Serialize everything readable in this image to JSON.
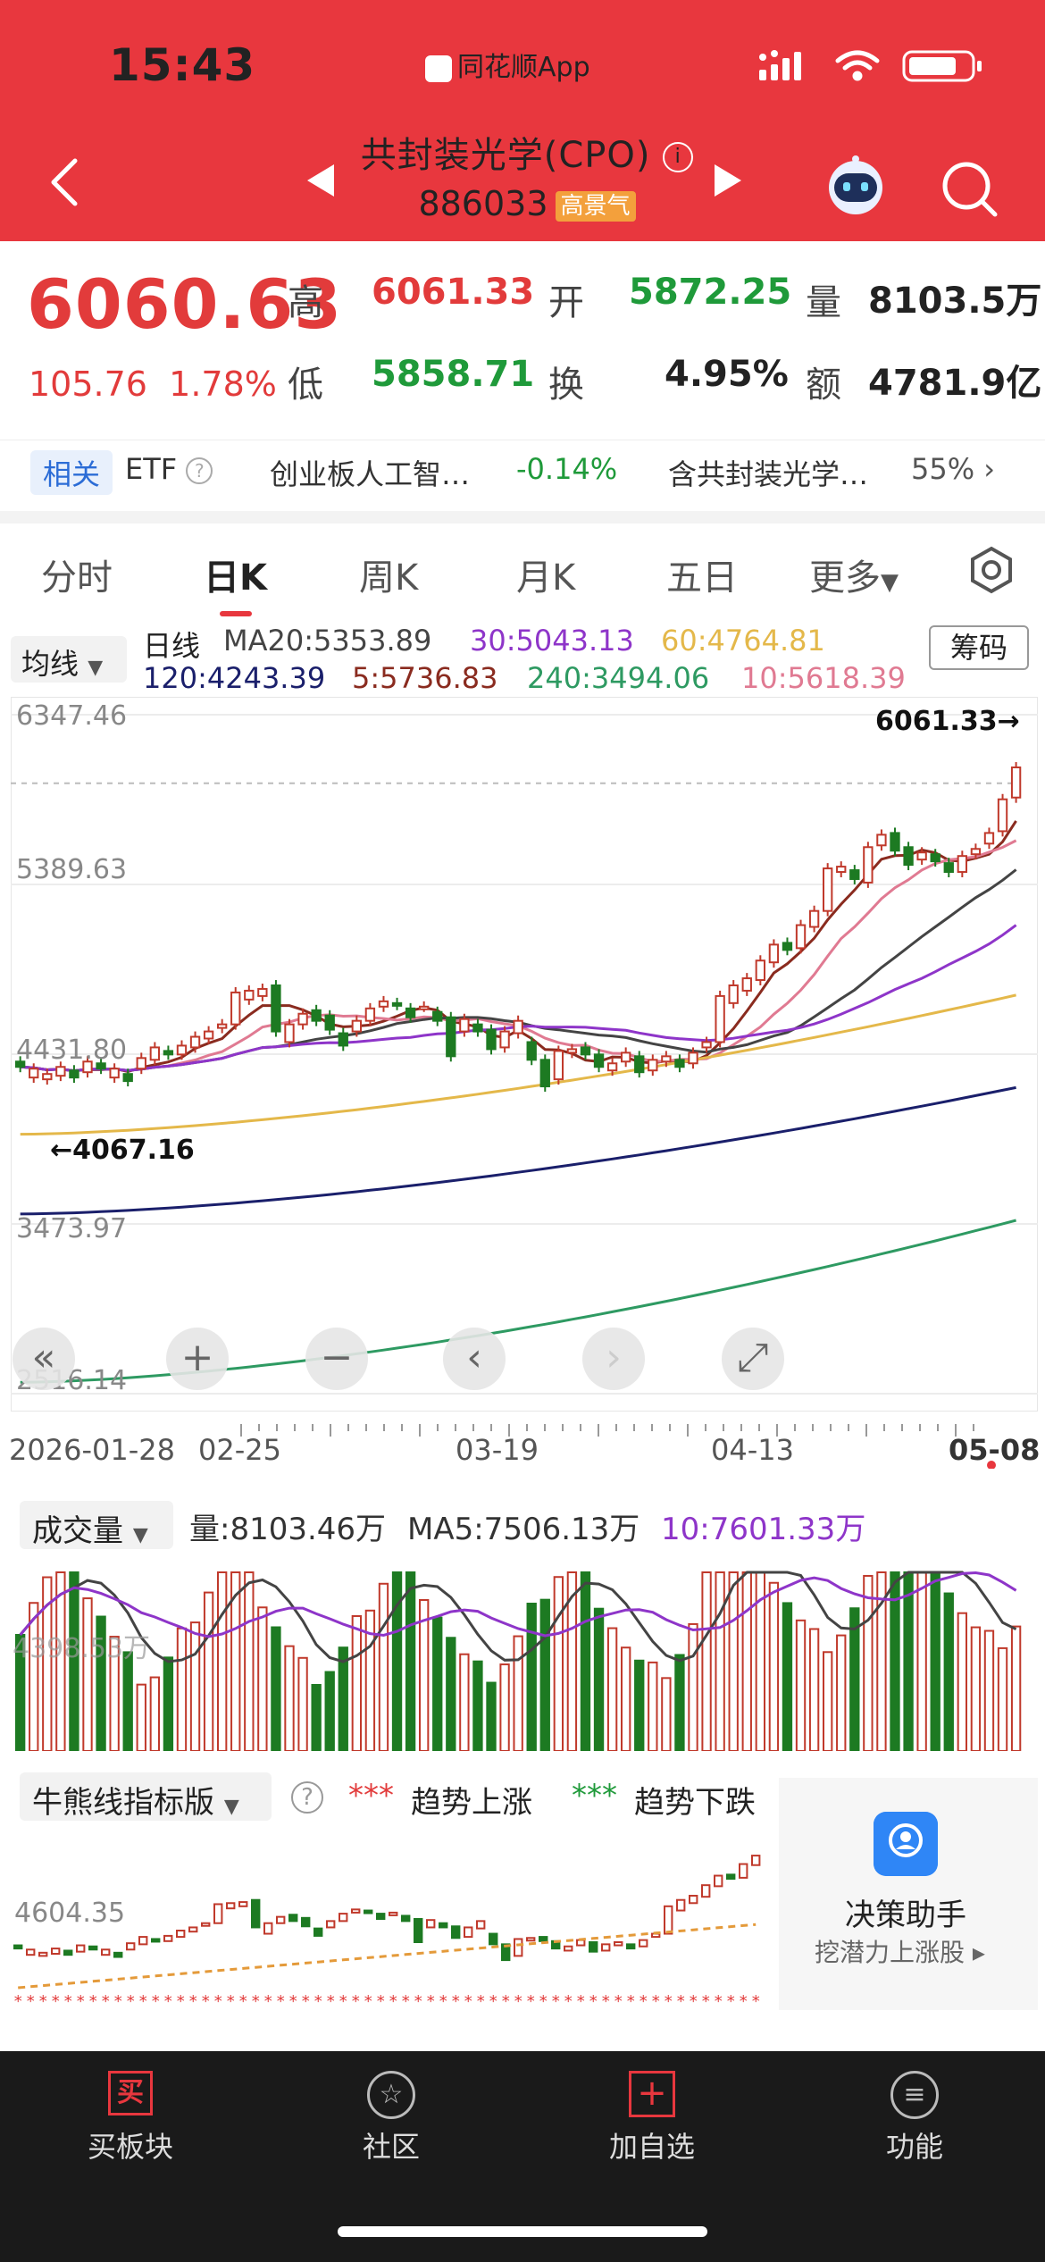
{
  "status": {
    "time": "15:43",
    "app": "同花顺App"
  },
  "header": {
    "title": "共封装光学(CPO)",
    "code": "886033",
    "badge": "高景气"
  },
  "quote": {
    "price": "6060.63",
    "change": "105.76",
    "change_pct": "1.78%",
    "labels": {
      "high": "高",
      "open": "开",
      "vol": "量",
      "low": "低",
      "turnover": "换",
      "amount": "额"
    },
    "high": "6061.33",
    "open": "5872.25",
    "vol": "8103.5万",
    "low": "5858.71",
    "turnover": "4.95%",
    "amount": "4781.9亿"
  },
  "related": {
    "tag": "相关",
    "etf": "ETF",
    "item1_name": "创业板人工智…",
    "item1_value": "-0.14%",
    "item2_name": "含共封装光学…",
    "item2_value": "55%"
  },
  "tabs": [
    "分时",
    "日K",
    "周K",
    "月K",
    "五日",
    "更多"
  ],
  "ma": {
    "select": "均线",
    "type": "日线",
    "ma20": "MA20:5353.89",
    "ma30": "30:5043.13",
    "ma60": "60:4764.81",
    "ma120": "120:4243.39",
    "ma5": "5:5736.83",
    "ma240": "240:3494.06",
    "ma10": "10:5618.39",
    "chip": "筹码"
  },
  "colors": {
    "up": "#c0392b",
    "down": "#1d7a22",
    "ma5": "#8a2b1f",
    "ma10": "#e07a92",
    "ma20": "#444444",
    "ma30": "#8e35c9",
    "ma60": "#e4b84a",
    "ma120": "#1a1f6b",
    "ma240": "#2e9a62"
  },
  "chart_data": {
    "type": "candlestick",
    "y_ticks": [
      "6347.46",
      "5389.63",
      "4431.80",
      "3473.97",
      "2516.14"
    ],
    "ylim": [
      2516.14,
      6347.46
    ],
    "high_label": "6061.33→",
    "low_label": "←4067.16",
    "dates": [
      "2026-01-28",
      "02-25",
      "03-19",
      "04-13",
      "05-08"
    ],
    "candles": [
      {
        "o": 4390,
        "c": 4360
      },
      {
        "o": 4300,
        "c": 4350
      },
      {
        "o": 4290,
        "c": 4320
      },
      {
        "o": 4310,
        "c": 4360
      },
      {
        "o": 4340,
        "c": 4300
      },
      {
        "o": 4330,
        "c": 4390
      },
      {
        "o": 4380,
        "c": 4350
      },
      {
        "o": 4300,
        "c": 4350
      },
      {
        "o": 4320,
        "c": 4280
      },
      {
        "o": 4350,
        "c": 4410
      },
      {
        "o": 4400,
        "c": 4470
      },
      {
        "o": 4450,
        "c": 4430
      },
      {
        "o": 4430,
        "c": 4480
      },
      {
        "o": 4470,
        "c": 4530
      },
      {
        "o": 4520,
        "c": 4560
      },
      {
        "o": 4580,
        "c": 4600
      },
      {
        "o": 4600,
        "c": 4780
      },
      {
        "o": 4740,
        "c": 4790
      },
      {
        "o": 4760,
        "c": 4800
      },
      {
        "o": 4820,
        "c": 4560
      },
      {
        "o": 4500,
        "c": 4600
      },
      {
        "o": 4600,
        "c": 4660
      },
      {
        "o": 4680,
        "c": 4620
      },
      {
        "o": 4650,
        "c": 4570
      },
      {
        "o": 4550,
        "c": 4480
      },
      {
        "o": 4560,
        "c": 4620
      },
      {
        "o": 4620,
        "c": 4690
      },
      {
        "o": 4700,
        "c": 4730
      },
      {
        "o": 4720,
        "c": 4710
      },
      {
        "o": 4690,
        "c": 4640
      },
      {
        "o": 4700,
        "c": 4700
      },
      {
        "o": 4670,
        "c": 4620
      },
      {
        "o": 4640,
        "c": 4420
      },
      {
        "o": 4560,
        "c": 4630
      },
      {
        "o": 4600,
        "c": 4560
      },
      {
        "o": 4570,
        "c": 4460
      },
      {
        "o": 4470,
        "c": 4560
      },
      {
        "o": 4550,
        "c": 4620
      },
      {
        "o": 4500,
        "c": 4400
      },
      {
        "o": 4400,
        "c": 4250
      },
      {
        "o": 4290,
        "c": 4450
      },
      {
        "o": 4440,
        "c": 4460
      },
      {
        "o": 4470,
        "c": 4430
      },
      {
        "o": 4430,
        "c": 4360
      },
      {
        "o": 4340,
        "c": 4380
      },
      {
        "o": 4390,
        "c": 4440
      },
      {
        "o": 4420,
        "c": 4330
      },
      {
        "o": 4340,
        "c": 4400
      },
      {
        "o": 4390,
        "c": 4420
      },
      {
        "o": 4400,
        "c": 4360
      },
      {
        "o": 4380,
        "c": 4440
      },
      {
        "o": 4470,
        "c": 4500
      },
      {
        "o": 4500,
        "c": 4760
      },
      {
        "o": 4720,
        "c": 4820
      },
      {
        "o": 4790,
        "c": 4860
      },
      {
        "o": 4850,
        "c": 4960
      },
      {
        "o": 4950,
        "c": 5050
      },
      {
        "o": 5060,
        "c": 5020
      },
      {
        "o": 5030,
        "c": 5160
      },
      {
        "o": 5150,
        "c": 5240
      },
      {
        "o": 5240,
        "c": 5480
      },
      {
        "o": 5460,
        "c": 5490
      },
      {
        "o": 5470,
        "c": 5420
      },
      {
        "o": 5400,
        "c": 5600
      },
      {
        "o": 5610,
        "c": 5670
      },
      {
        "o": 5680,
        "c": 5580
      },
      {
        "o": 5600,
        "c": 5500
      },
      {
        "o": 5530,
        "c": 5570
      },
      {
        "o": 5560,
        "c": 5520
      },
      {
        "o": 5510,
        "c": 5460
      },
      {
        "o": 5460,
        "c": 5550
      },
      {
        "o": 5560,
        "c": 5590
      },
      {
        "o": 5620,
        "c": 5680
      },
      {
        "o": 5690,
        "c": 5870
      },
      {
        "o": 5880,
        "c": 6050
      }
    ]
  },
  "controls": [
    "«",
    "+",
    "−",
    "‹",
    "›",
    "⤢"
  ],
  "volume": {
    "select": "成交量",
    "vol": "量:8103.46万",
    "ma5": "MA5:7506.13万",
    "ma10": "10:7601.33万",
    "axis_label": "4398.53万"
  },
  "bullbear": {
    "select": "牛熊线指标版",
    "up_label": "趋势上涨",
    "down_label": "趋势下跌",
    "up_marker": "***",
    "down_marker": "***",
    "axis_label": "4604.35"
  },
  "assistant": {
    "title": "决策助手",
    "subtitle": "挖潜力上涨股"
  },
  "nav": [
    {
      "label": "买板块",
      "icon": "买"
    },
    {
      "label": "社区",
      "icon": "☆"
    },
    {
      "label": "加自选",
      "icon": "+"
    },
    {
      "label": "功能",
      "icon": "≡"
    }
  ]
}
